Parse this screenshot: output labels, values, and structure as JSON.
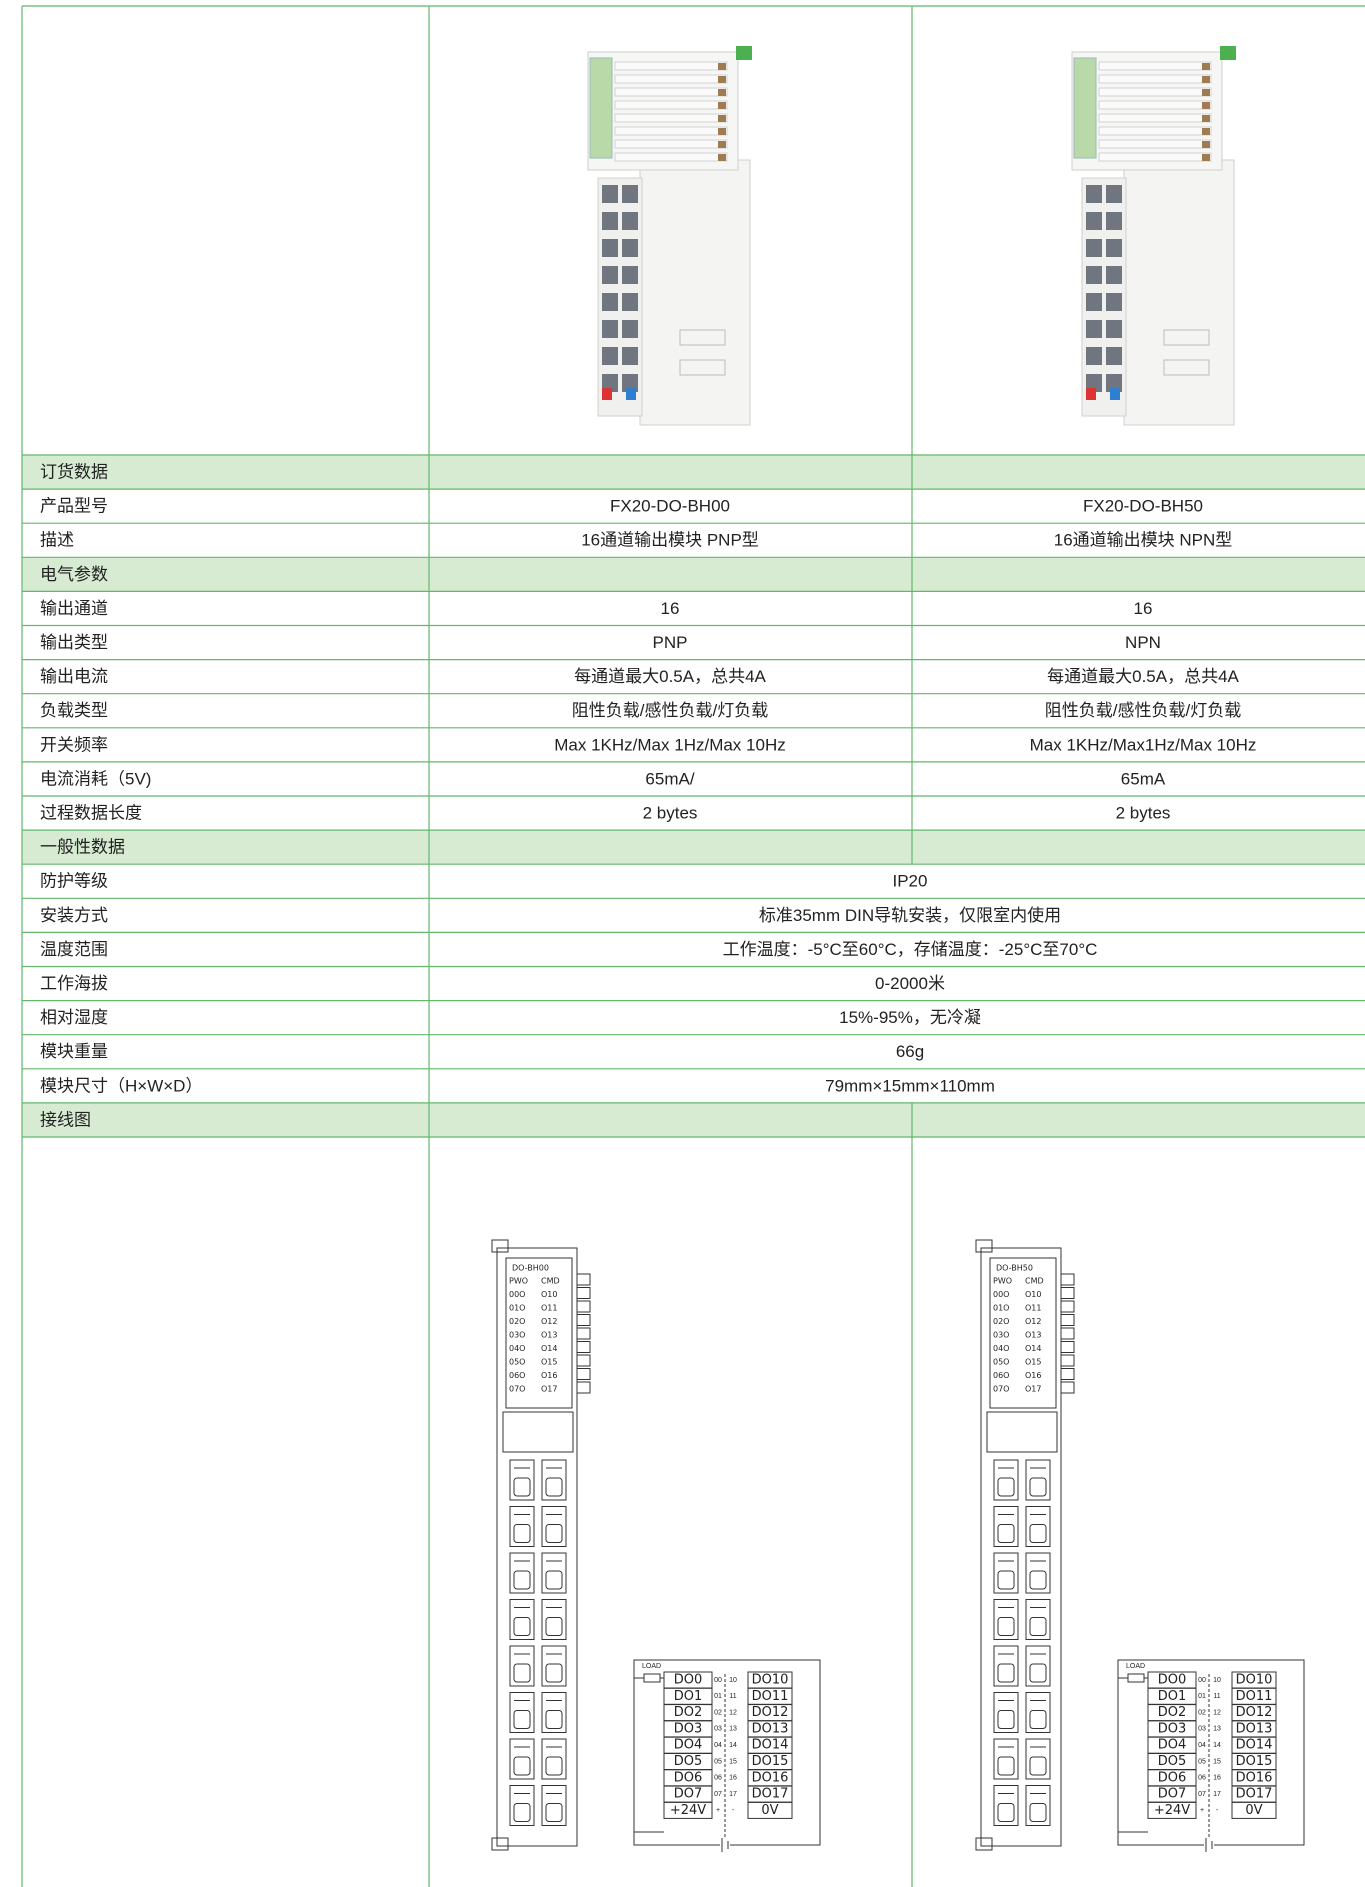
{
  "table": {
    "rows": [
      {
        "label": "订货数据"
      },
      {
        "label": "产品型号",
        "values": [
          "FX20-DO-BH00",
          "FX20-DO-BH50"
        ]
      },
      {
        "label": "描述",
        "values": [
          "16通道输出模块 PNP型",
          "16通道输出模块 NPN型"
        ]
      },
      {
        "label": "电气参数"
      },
      {
        "label": "输出通道",
        "values": [
          "16",
          "16"
        ]
      },
      {
        "label": "输出类型",
        "values": [
          "PNP",
          "NPN"
        ]
      },
      {
        "label": "输出电流",
        "values": [
          "每通道最大0.5A，总共4A",
          "每通道最大0.5A，总共4A"
        ]
      },
      {
        "label": "负载类型",
        "values": [
          "阻性负载/感性负载/灯负载",
          "阻性负载/感性负载/灯负载"
        ]
      },
      {
        "label": "开关频率",
        "values": [
          "Max 1KHz/Max 1Hz/Max 10Hz",
          "Max 1KHz/Max1Hz/Max 10Hz"
        ]
      },
      {
        "label": "电流消耗（5V)",
        "values": [
          "65mA/",
          "65mA"
        ]
      },
      {
        "label": "过程数据长度",
        "values": [
          "2 bytes",
          "2 bytes"
        ]
      },
      {
        "label": "一般性数据"
      },
      {
        "label": "防护等级",
        "values": [
          "IP20"
        ]
      },
      {
        "label": "安装方式",
        "values": [
          "标准35mm DIN导轨安装，仅限室内使用"
        ]
      },
      {
        "label": "温度范围",
        "values": [
          "工作温度：-5°C至60°C，存储温度：-25°C至70°C"
        ]
      },
      {
        "label": "工作海拔",
        "values": [
          "0-2000米"
        ]
      },
      {
        "label": "相对湿度",
        "values": [
          "15%-95%，无冷凝"
        ]
      },
      {
        "label": "模块重量",
        "values": [
          "66g"
        ]
      },
      {
        "label": "模块尺寸（H×W×D）",
        "values": [
          "79mm×15mm×110mm"
        ]
      },
      {
        "label": "接线图"
      }
    ]
  },
  "wiring": [
    {
      "module": "DO-BH00",
      "leds": [
        [
          "PWO",
          "CMD"
        ],
        [
          "00O",
          "O10"
        ],
        [
          "01O",
          "O11"
        ],
        [
          "02O",
          "O12"
        ],
        [
          "03O",
          "O13"
        ],
        [
          "04O",
          "O14"
        ],
        [
          "05O",
          "O15"
        ],
        [
          "06O",
          "O16"
        ],
        [
          "07O",
          "O17"
        ]
      ],
      "load": "LOAD",
      "terminals": [
        [
          "DO0",
          "00",
          "10",
          "DO10"
        ],
        [
          "DO1",
          "01",
          "11",
          "DO11"
        ],
        [
          "DO2",
          "02",
          "12",
          "DO12"
        ],
        [
          "DO3",
          "03",
          "13",
          "DO13"
        ],
        [
          "DO4",
          "04",
          "14",
          "DO14"
        ],
        [
          "DO5",
          "05",
          "15",
          "DO15"
        ],
        [
          "DO6",
          "06",
          "16",
          "DO16"
        ],
        [
          "DO7",
          "07",
          "17",
          "DO17"
        ],
        [
          "+24V",
          "+",
          "-",
          "0V"
        ]
      ]
    },
    {
      "module": "DO-BH50",
      "leds": [
        [
          "PWO",
          "CMD"
        ],
        [
          "00O",
          "O10"
        ],
        [
          "01O",
          "O11"
        ],
        [
          "02O",
          "O12"
        ],
        [
          "03O",
          "O13"
        ],
        [
          "04O",
          "O14"
        ],
        [
          "05O",
          "O15"
        ],
        [
          "06O",
          "O16"
        ],
        [
          "07O",
          "O17"
        ]
      ],
      "load": "LOAD",
      "terminals": [
        [
          "DO0",
          "00",
          "10",
          "DO10"
        ],
        [
          "DO1",
          "01",
          "11",
          "DO11"
        ],
        [
          "DO2",
          "02",
          "12",
          "DO12"
        ],
        [
          "DO3",
          "03",
          "13",
          "DO13"
        ],
        [
          "DO4",
          "04",
          "14",
          "DO14"
        ],
        [
          "DO5",
          "05",
          "15",
          "DO15"
        ],
        [
          "DO6",
          "06",
          "16",
          "DO16"
        ],
        [
          "DO7",
          "07",
          "17",
          "DO17"
        ],
        [
          "+24V",
          "+",
          "-",
          "0V"
        ]
      ]
    }
  ]
}
